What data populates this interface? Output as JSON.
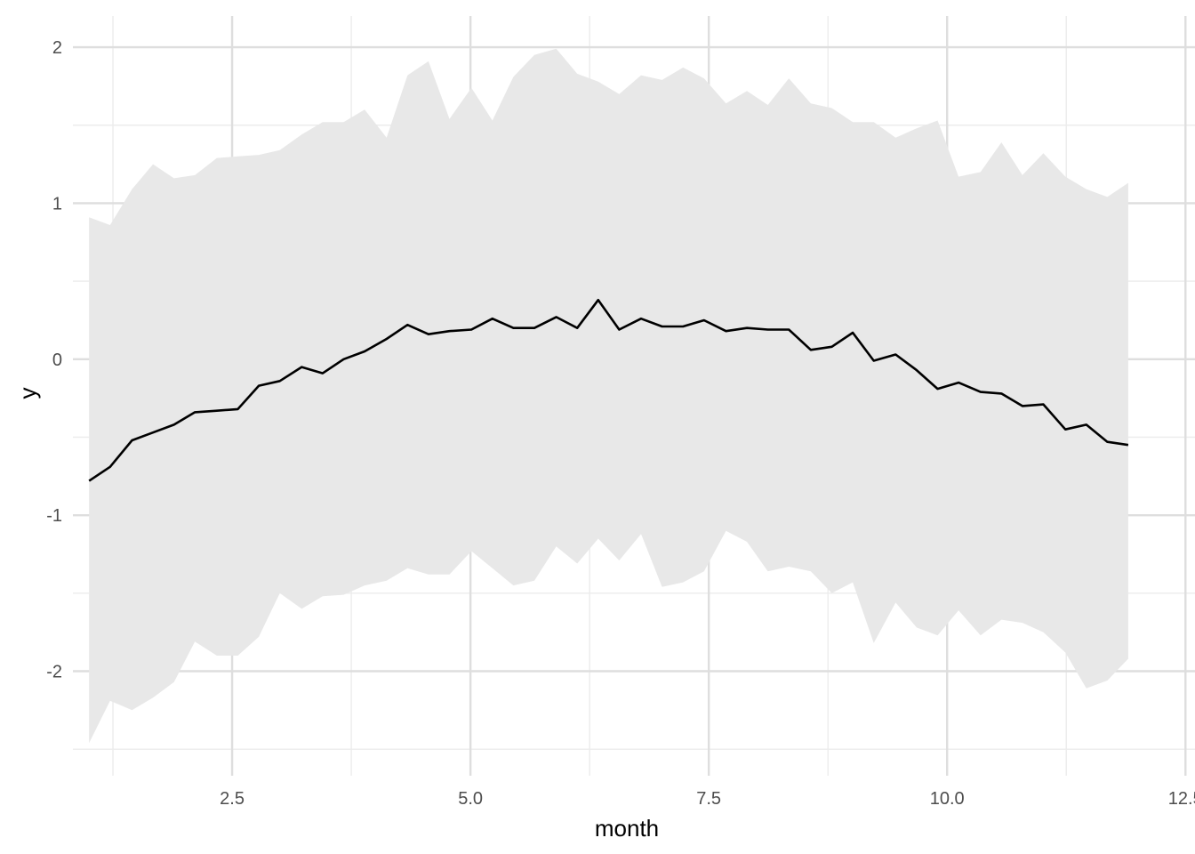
{
  "chart_data": {
    "type": "area",
    "xlabel": "month",
    "ylabel": "y",
    "xlim": [
      0.83,
      12.6
    ],
    "ylim": [
      -2.67,
      2.2
    ],
    "x_ticks": [
      2.5,
      5.0,
      7.5,
      10.0,
      12.5
    ],
    "x_tick_labels": [
      "2.5",
      "5.0",
      "7.5",
      "10.0",
      "12.5"
    ],
    "y_ticks": [
      -2,
      -1,
      0,
      1,
      2
    ],
    "y_tick_labels": [
      "-2",
      "-1",
      "0",
      "1",
      "2"
    ],
    "grid": true,
    "legend": "none",
    "colors": {
      "band": "#e8e8e8",
      "line": "#000000",
      "grid_major": "#dedede",
      "grid_minor": "#ececec"
    },
    "x": [
      1.0,
      1.22,
      1.45,
      1.67,
      1.89,
      2.11,
      2.34,
      2.56,
      2.78,
      3.0,
      3.23,
      3.45,
      3.67,
      3.89,
      4.12,
      4.34,
      4.56,
      4.78,
      5.01,
      5.23,
      5.45,
      5.67,
      5.9,
      6.12,
      6.34,
      6.56,
      6.79,
      7.01,
      7.23,
      7.45,
      7.68,
      7.9,
      8.12,
      8.34,
      8.57,
      8.79,
      9.01,
      9.23,
      9.46,
      9.68,
      9.9,
      10.12,
      10.35,
      10.57,
      10.79,
      11.01,
      11.24,
      11.46,
      11.68,
      11.9
    ],
    "series": [
      {
        "values": [
          -0.78,
          -0.69,
          -0.52,
          -0.47,
          -0.42,
          -0.34,
          -0.33,
          -0.32,
          -0.17,
          -0.14,
          -0.05,
          -0.09,
          0.0,
          0.05,
          0.13,
          0.22,
          0.16,
          0.18,
          0.19,
          0.26,
          0.2,
          0.2,
          0.27,
          0.2,
          0.38,
          0.19,
          0.26,
          0.21,
          0.21,
          0.25,
          0.18,
          0.2,
          0.19,
          0.19,
          0.06,
          0.08,
          0.17,
          -0.01,
          0.03,
          -0.07,
          -0.19,
          -0.15,
          -0.21,
          -0.22,
          -0.3,
          -0.29,
          -0.45,
          -0.42,
          -0.53,
          -0.55
        ]
      }
    ],
    "band_upper": [
      0.91,
      0.86,
      1.09,
      1.25,
      1.16,
      1.18,
      1.29,
      1.3,
      1.31,
      1.34,
      1.44,
      1.52,
      1.52,
      1.6,
      1.42,
      1.82,
      1.91,
      1.54,
      1.74,
      1.53,
      1.81,
      1.95,
      1.99,
      1.83,
      1.78,
      1.7,
      1.82,
      1.79,
      1.87,
      1.8,
      1.64,
      1.72,
      1.63,
      1.8,
      1.64,
      1.61,
      1.52,
      1.52,
      1.42,
      1.48,
      1.53,
      1.17,
      1.2,
      1.39,
      1.18,
      1.32,
      1.17,
      1.09,
      1.04,
      1.13
    ],
    "band_lower": [
      -2.46,
      -2.19,
      -2.25,
      -2.17,
      -2.07,
      -1.81,
      -1.9,
      -1.9,
      -1.78,
      -1.5,
      -1.6,
      -1.52,
      -1.51,
      -1.45,
      -1.42,
      -1.34,
      -1.38,
      -1.38,
      -1.23,
      -1.34,
      -1.45,
      -1.42,
      -1.2,
      -1.31,
      -1.15,
      -1.29,
      -1.12,
      -1.46,
      -1.43,
      -1.36,
      -1.1,
      -1.17,
      -1.36,
      -1.33,
      -1.36,
      -1.5,
      -1.43,
      -1.82,
      -1.56,
      -1.72,
      -1.77,
      -1.61,
      -1.77,
      -1.67,
      -1.69,
      -1.75,
      -1.88,
      -2.11,
      -2.06,
      -1.92
    ]
  }
}
